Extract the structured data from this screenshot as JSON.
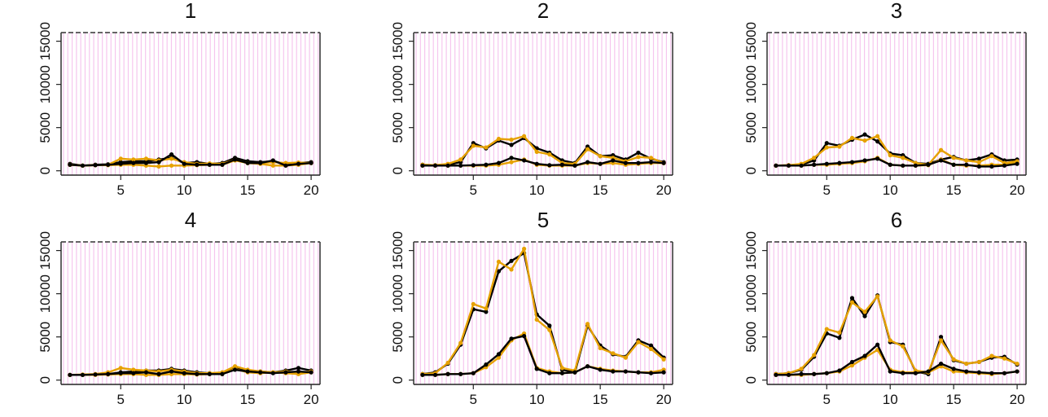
{
  "chart_data": [
    {
      "type": "line",
      "title": "1",
      "x": [
        1,
        2,
        3,
        4,
        5,
        6,
        7,
        8,
        9,
        10,
        11,
        12,
        13,
        14,
        15,
        16,
        17,
        18,
        19,
        20
      ],
      "xticks": [
        5,
        10,
        15,
        20
      ],
      "yticks": [
        0,
        5000,
        10000,
        15000
      ],
      "xlim": [
        0.3,
        20.7
      ],
      "ylim": [
        -500,
        16000
      ],
      "series": [
        {
          "color": "#000000",
          "values": [
            800,
            600,
            700,
            750,
            1000,
            1100,
            1100,
            1300,
            1500,
            900,
            1000,
            800,
            900,
            1500,
            1100,
            1000,
            1100,
            800,
            900,
            1000
          ]
        },
        {
          "color": "#E6A100",
          "values": [
            700,
            600,
            650,
            700,
            1400,
            1300,
            1400,
            1200,
            1400,
            1000,
            800,
            850,
            800,
            1300,
            900,
            900,
            1000,
            900,
            950,
            900
          ]
        },
        {
          "color": "#E6A100",
          "values": [
            700,
            600,
            650,
            650,
            700,
            700,
            600,
            500,
            600,
            600,
            650,
            700,
            700,
            1200,
            900,
            800,
            600,
            600,
            700,
            900
          ]
        },
        {
          "color": "#000000",
          "values": [
            700,
            600,
            650,
            700,
            800,
            900,
            900,
            1000,
            1900,
            800,
            700,
            700,
            700,
            1300,
            900,
            900,
            1200,
            600,
            800,
            900
          ]
        }
      ]
    },
    {
      "type": "line",
      "title": "2",
      "x": [
        1,
        2,
        3,
        4,
        5,
        6,
        7,
        8,
        9,
        10,
        11,
        12,
        13,
        14,
        15,
        16,
        17,
        18,
        19,
        20
      ],
      "xticks": [
        5,
        10,
        15,
        20
      ],
      "yticks": [
        0,
        5000,
        10000,
        15000
      ],
      "xlim": [
        0.3,
        20.7
      ],
      "ylim": [
        -500,
        16000
      ],
      "series": [
        {
          "color": "#000000",
          "values": [
            700,
            650,
            700,
            1000,
            3200,
            2600,
            3500,
            3000,
            3800,
            2600,
            2100,
            1200,
            900,
            2800,
            1700,
            1800,
            1300,
            2100,
            1400,
            1000
          ]
        },
        {
          "color": "#E6A100",
          "values": [
            700,
            650,
            800,
            1300,
            2900,
            2700,
            3700,
            3600,
            4000,
            2200,
            1900,
            900,
            800,
            2500,
            1700,
            1500,
            1100,
            1600,
            1500,
            900
          ]
        },
        {
          "color": "#E6A100",
          "values": [
            600,
            600,
            600,
            600,
            600,
            600,
            700,
            1000,
            1300,
            700,
            600,
            600,
            600,
            900,
            800,
            900,
            700,
            800,
            900,
            900
          ]
        },
        {
          "color": "#000000",
          "values": [
            600,
            600,
            600,
            600,
            650,
            700,
            900,
            1500,
            1200,
            800,
            650,
            700,
            600,
            1000,
            800,
            1200,
            900,
            900,
            1000,
            900
          ]
        }
      ]
    },
    {
      "type": "line",
      "title": "3",
      "x": [
        1,
        2,
        3,
        4,
        5,
        6,
        7,
        8,
        9,
        10,
        11,
        12,
        13,
        14,
        15,
        16,
        17,
        18,
        19,
        20
      ],
      "xticks": [
        5,
        10,
        15,
        20
      ],
      "yticks": [
        0,
        5000,
        10000,
        15000
      ],
      "xlim": [
        0.3,
        20.7
      ],
      "ylim": [
        -500,
        16000
      ],
      "series": [
        {
          "color": "#000000",
          "values": [
            600,
            650,
            700,
            1200,
            3200,
            2900,
            3600,
            4200,
            3400,
            2000,
            1800,
            900,
            800,
            1300,
            1600,
            1200,
            1400,
            1900,
            1200,
            1300
          ]
        },
        {
          "color": "#E6A100",
          "values": [
            600,
            650,
            800,
            1500,
            2700,
            2800,
            3800,
            3500,
            4000,
            1800,
            1500,
            900,
            700,
            2400,
            1500,
            1200,
            1000,
            1700,
            900,
            1100
          ]
        },
        {
          "color": "#E6A100",
          "values": [
            600,
            600,
            600,
            700,
            700,
            800,
            900,
            1100,
            1500,
            700,
            600,
            600,
            650,
            1300,
            700,
            600,
            600,
            700,
            700,
            1000
          ]
        },
        {
          "color": "#000000",
          "values": [
            600,
            600,
            600,
            700,
            800,
            900,
            1000,
            1200,
            1400,
            700,
            600,
            600,
            700,
            1200,
            700,
            700,
            500,
            500,
            600,
            800
          ]
        }
      ]
    },
    {
      "type": "line",
      "title": "4",
      "x": [
        1,
        2,
        3,
        4,
        5,
        6,
        7,
        8,
        9,
        10,
        11,
        12,
        13,
        14,
        15,
        16,
        17,
        18,
        19,
        20
      ],
      "xticks": [
        5,
        10,
        15,
        20
      ],
      "yticks": [
        0,
        5000,
        10000,
        15000
      ],
      "xlim": [
        0.3,
        20.7
      ],
      "ylim": [
        -500,
        16000
      ],
      "series": [
        {
          "color": "#000000",
          "values": [
            600,
            600,
            650,
            700,
            900,
            1000,
            1100,
            1100,
            1300,
            1100,
            900,
            800,
            800,
            1400,
            1000,
            1000,
            900,
            1100,
            1400,
            1100
          ]
        },
        {
          "color": "#E6A100",
          "values": [
            600,
            650,
            700,
            900,
            1400,
            1200,
            1100,
            1000,
            1200,
            1000,
            800,
            800,
            900,
            1600,
            1200,
            1000,
            900,
            1000,
            900,
            1000
          ]
        },
        {
          "color": "#E6A100",
          "values": [
            600,
            600,
            600,
            650,
            700,
            700,
            600,
            600,
            700,
            700,
            650,
            700,
            700,
            1300,
            900,
            800,
            900,
            800,
            700,
            900
          ]
        },
        {
          "color": "#000000",
          "values": [
            600,
            600,
            650,
            700,
            800,
            800,
            900,
            700,
            1000,
            800,
            700,
            700,
            700,
            1200,
            1000,
            900,
            800,
            900,
            1000,
            900
          ]
        }
      ]
    },
    {
      "type": "line",
      "title": "5",
      "x": [
        1,
        2,
        3,
        4,
        5,
        6,
        7,
        8,
        9,
        10,
        11,
        12,
        13,
        14,
        15,
        16,
        17,
        18,
        19,
        20
      ],
      "xticks": [
        5,
        10,
        15,
        20
      ],
      "yticks": [
        0,
        5000,
        10000,
        15000
      ],
      "xlim": [
        0.3,
        20.7
      ],
      "ylim": [
        -500,
        16000
      ],
      "series": [
        {
          "color": "#000000",
          "values": [
            700,
            900,
            1900,
            4100,
            8200,
            7900,
            12600,
            13800,
            14700,
            7600,
            6300,
            1200,
            900,
            6300,
            4000,
            3000,
            2700,
            4600,
            4000,
            2600
          ]
        },
        {
          "color": "#E6A100",
          "values": [
            700,
            800,
            2000,
            4300,
            8800,
            8300,
            13700,
            12800,
            15200,
            7000,
            5800,
            1400,
            1100,
            6500,
            3700,
            3100,
            2600,
            4400,
            3600,
            2400
          ]
        },
        {
          "color": "#E6A100",
          "values": [
            600,
            600,
            700,
            700,
            800,
            1500,
            2600,
            4600,
            5400,
            1400,
            1000,
            800,
            900,
            1600,
            1300,
            1100,
            1000,
            900,
            900,
            1200
          ]
        },
        {
          "color": "#000000",
          "values": [
            600,
            600,
            700,
            700,
            800,
            1800,
            3000,
            4800,
            5100,
            1300,
            800,
            800,
            900,
            1600,
            1200,
            1000,
            1000,
            900,
            800,
            900
          ]
        }
      ]
    },
    {
      "type": "line",
      "title": "6",
      "x": [
        1,
        2,
        3,
        4,
        5,
        6,
        7,
        8,
        9,
        10,
        11,
        12,
        13,
        14,
        15,
        16,
        17,
        18,
        19,
        20
      ],
      "xticks": [
        5,
        10,
        15,
        20
      ],
      "yticks": [
        0,
        5000,
        10000,
        15000
      ],
      "xlim": [
        0.3,
        20.7
      ],
      "ylim": [
        -500,
        16000
      ],
      "series": [
        {
          "color": "#000000",
          "values": [
            700,
            800,
            1200,
            2700,
            5400,
            4900,
            9500,
            7400,
            9800,
            4400,
            4100,
            1000,
            700,
            5000,
            2300,
            1900,
            2100,
            2600,
            2700,
            1800
          ]
        },
        {
          "color": "#E6A100",
          "values": [
            700,
            800,
            1300,
            2900,
            5900,
            5500,
            9000,
            7900,
            9700,
            4600,
            3900,
            1100,
            900,
            4600,
            2400,
            1900,
            2100,
            2800,
            2500,
            1900
          ]
        },
        {
          "color": "#E6A100",
          "values": [
            600,
            600,
            600,
            700,
            800,
            1000,
            1700,
            2600,
            3500,
            1200,
            900,
            900,
            900,
            1600,
            1000,
            900,
            800,
            700,
            800,
            1000
          ]
        },
        {
          "color": "#000000",
          "values": [
            600,
            600,
            700,
            700,
            800,
            1100,
            2100,
            2800,
            4100,
            1000,
            800,
            800,
            1000,
            1900,
            1300,
            1000,
            900,
            800,
            800,
            1000
          ]
        }
      ]
    }
  ]
}
